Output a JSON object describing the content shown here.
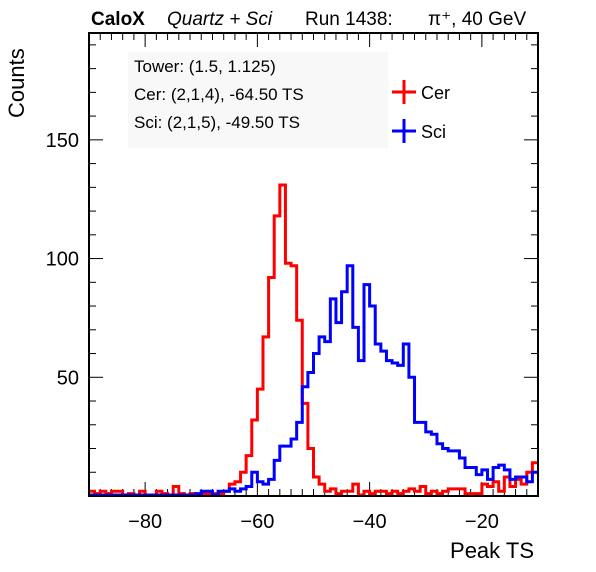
{
  "title": {
    "brand": "CaloX",
    "detector": "Quartz + Sci",
    "run": "Run 1438:",
    "particle": "π⁺, 40 GeV"
  },
  "stats": {
    "tower": "Tower: (1.5, 1.125)",
    "cer": "Cer: (2,1,4), -64.50 TS",
    "sci": "Sci: (2,1,5), -49.50 TS"
  },
  "chart_data": {
    "type": "line",
    "xlabel": "Peak TS",
    "ylabel": "Counts",
    "xlim": [
      -90,
      -10
    ],
    "ylim": [
      0,
      195
    ],
    "x_ticks": [
      -80,
      -60,
      -40,
      -20
    ],
    "x_tick_labels": [
      "−80",
      "−60",
      "−40",
      "−20"
    ],
    "y_ticks": [
      50,
      100,
      150
    ],
    "y_tick_labels": [
      "50",
      "100",
      "150"
    ],
    "bin_width": 1,
    "bin_start": -90,
    "legend": {
      "position": "top-right"
    },
    "series": [
      {
        "name": "Cer",
        "color": "#ff0000",
        "values": [
          2,
          1,
          2,
          1,
          2,
          2,
          0,
          1,
          0,
          2,
          0,
          0,
          2,
          1,
          0,
          4,
          1,
          0,
          1,
          0,
          1,
          1,
          1,
          1,
          2,
          5,
          6,
          10,
          17,
          32,
          45,
          67,
          92,
          118,
          131,
          98,
          97,
          74,
          39,
          20,
          8,
          5,
          2,
          3,
          1,
          2,
          2,
          5,
          0,
          2,
          1,
          2,
          2,
          1,
          2,
          1,
          2,
          3,
          2,
          4,
          1,
          2,
          1,
          2,
          3,
          3,
          3,
          1,
          1,
          1,
          5,
          4,
          6,
          2,
          8,
          4,
          7,
          5,
          10,
          14
        ]
      },
      {
        "name": "Sci",
        "color": "#0000ff",
        "values": [
          0,
          0,
          0,
          0,
          0,
          0,
          0,
          0,
          0,
          0,
          0,
          0,
          0,
          0,
          0,
          0,
          0,
          0,
          0,
          1,
          2,
          2,
          0,
          2,
          2,
          3,
          2,
          3,
          4,
          10,
          6,
          5,
          7,
          15,
          21,
          21,
          24,
          31,
          46,
          52,
          60,
          67,
          65,
          83,
          73,
          86,
          97,
          71,
          57,
          89,
          80,
          64,
          61,
          57,
          56,
          55,
          64,
          50,
          31,
          31,
          27,
          26,
          22,
          20,
          19,
          19,
          16,
          12,
          12,
          9,
          11,
          7,
          12,
          13,
          11,
          7,
          8,
          8,
          6,
          10
        ]
      }
    ]
  }
}
